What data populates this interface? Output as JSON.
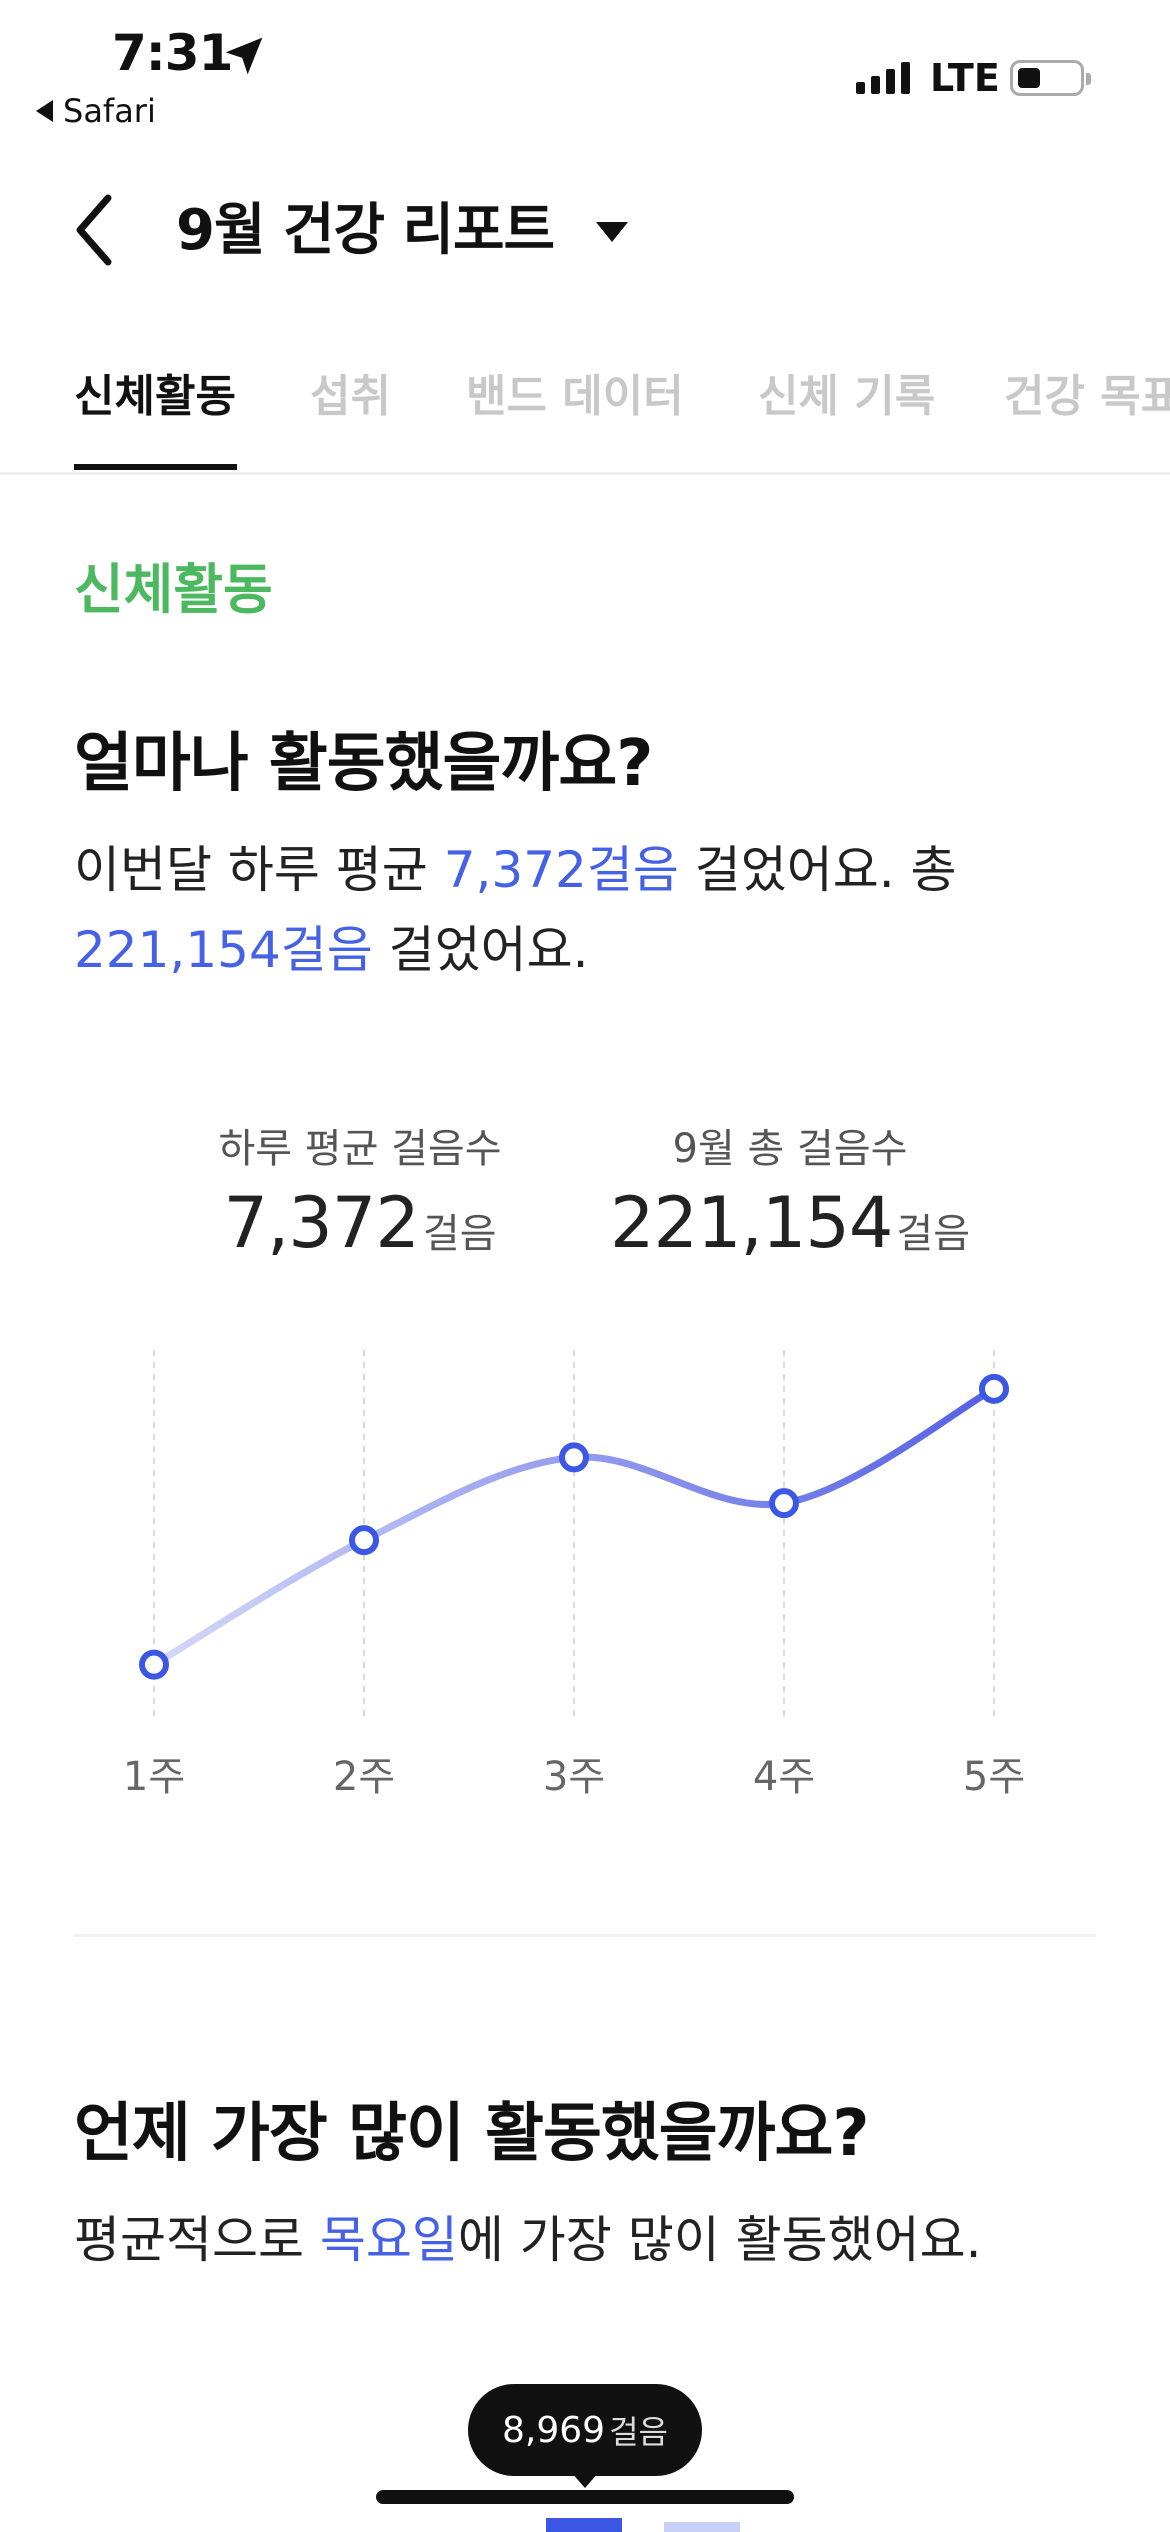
{
  "status_bar": {
    "time": "7:31",
    "back_app": "Safari",
    "network": "LTE"
  },
  "header": {
    "title": "9월 건강 리포트"
  },
  "tabs": [
    {
      "label": "신체활동",
      "active": true
    },
    {
      "label": "섭취",
      "active": false
    },
    {
      "label": "밴드 데이터",
      "active": false
    },
    {
      "label": "신체 기록",
      "active": false
    },
    {
      "label": "건강 목표",
      "active": false
    }
  ],
  "activity": {
    "section_label": "신체활동",
    "heading": "얼마나 활동했을까요?",
    "summary": {
      "part1": "이번달 하루 평균 ",
      "avg_steps": "7,372걸음",
      "part2": " 걸었어요. 총",
      "total_steps": "221,154걸음",
      "part3": " 걸었어요."
    },
    "stats": [
      {
        "label": "하루 평균 걸음수",
        "value": "7,372",
        "unit": "걸음"
      },
      {
        "label": "9월 총 걸음수",
        "value": "221,154",
        "unit": "걸음"
      }
    ]
  },
  "chart_data": {
    "type": "line",
    "categories": [
      "1주",
      "2주",
      "3주",
      "4주",
      "5주"
    ],
    "values": [
      4600,
      6450,
      7680,
      7000,
      8700
    ],
    "ylim": [
      4000,
      9500
    ],
    "grid": "vertical-dashed",
    "colors": {
      "start": "#d4d8f8",
      "end": "#5461e4",
      "marker": "#3d57e5"
    }
  },
  "weekday": {
    "heading": "언제 가장 많이 활동했을까요?",
    "summary": {
      "part1": "평균적으로 ",
      "day": "목요일",
      "part2": "에 가장 많이 활동했어요."
    },
    "tooltip": {
      "value": "8,969",
      "unit": "걸음"
    }
  },
  "colors": {
    "accent": "#4561e6",
    "section_green": "#4cb860"
  }
}
